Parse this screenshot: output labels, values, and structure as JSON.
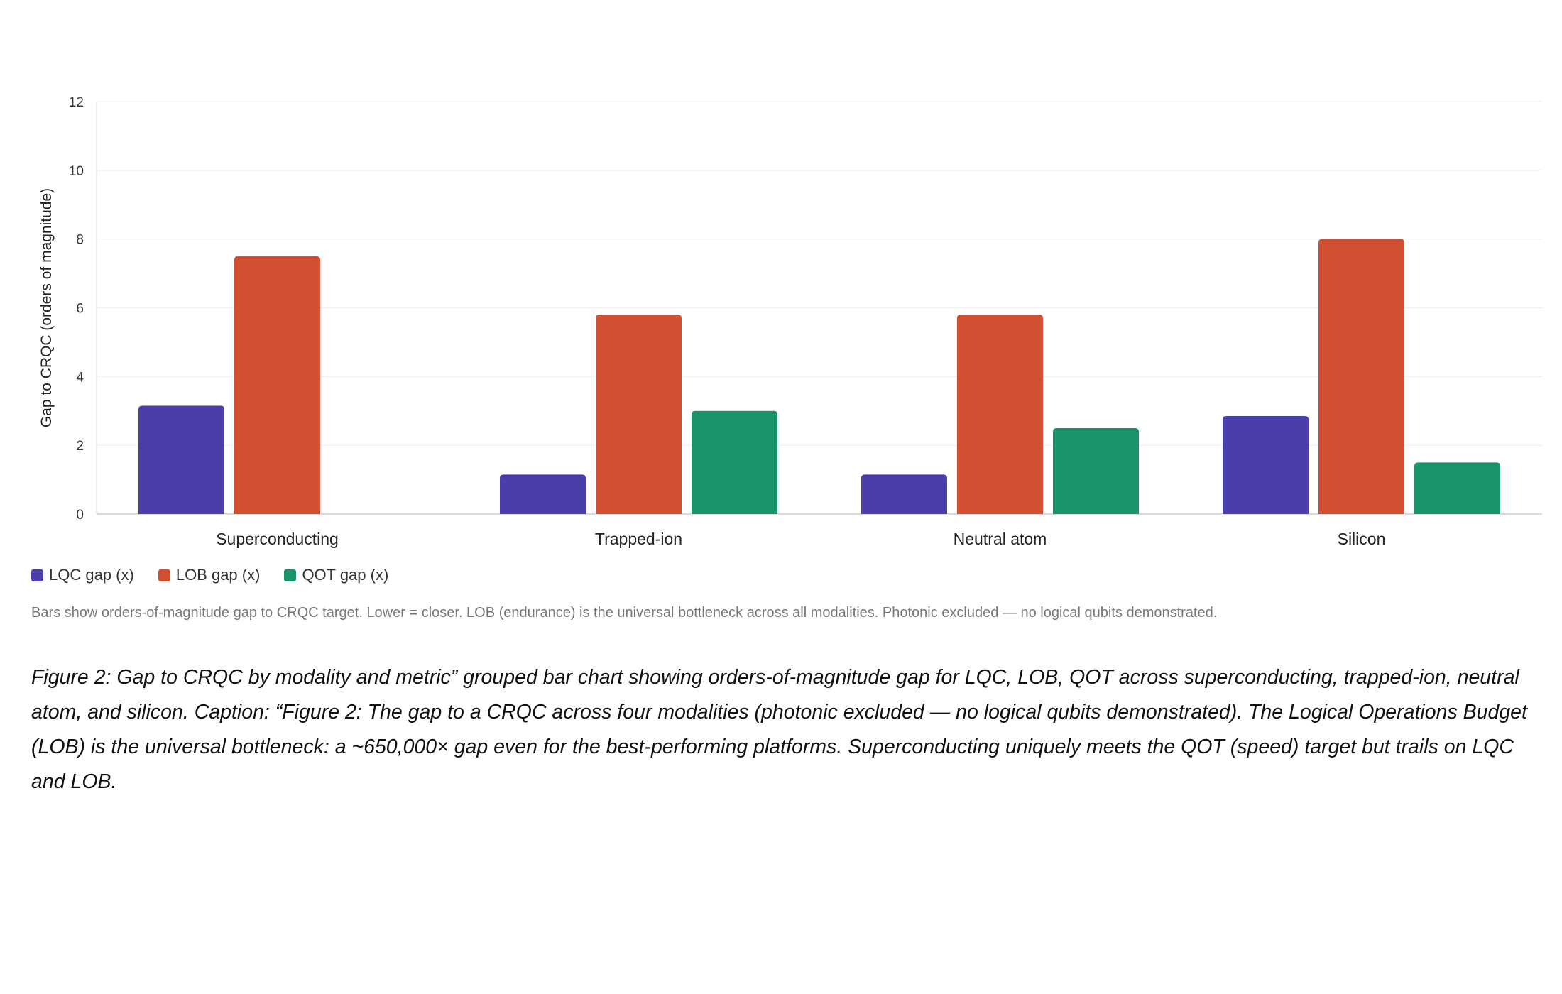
{
  "chart_data": {
    "type": "bar",
    "categories": [
      "Superconducting",
      "Trapped-ion",
      "Neutral atom",
      "Silicon"
    ],
    "series": [
      {
        "name": "LQC gap (x)",
        "color": "#4a3fa8",
        "values": [
          3.15,
          1.15,
          1.15,
          2.85
        ]
      },
      {
        "name": "LOB gap (x)",
        "color": "#d25031",
        "values": [
          7.5,
          5.8,
          5.8,
          8.0
        ]
      },
      {
        "name": "QOT gap (x)",
        "color": "#18936a",
        "values": [
          0,
          3.0,
          2.5,
          1.5
        ]
      }
    ],
    "title": "",
    "xlabel": "",
    "ylabel": "Gap to CRQC (orders of magnitude)",
    "ylim": [
      0,
      12
    ],
    "yticks": [
      "0",
      "2",
      "4",
      "6",
      "8",
      "10",
      "12"
    ],
    "grid": true,
    "legend_placement": "bottom-left"
  },
  "note": "Bars show orders-of-magnitude gap to CRQC target. Lower = closer. LOB (endurance) is the universal bottleneck across all modalities. Photonic excluded — no logical qubits demonstrated.",
  "caption": "Figure 2: Gap to CRQC by modality and metric” grouped bar chart showing orders-of-magnitude gap for LQC, LOB, QOT across superconducting, trapped-ion, neutral atom, and silicon. Caption: “Figure 2: The gap to a CRQC across four modalities (photonic excluded — no logical qubits demonstrated). The Logical Operations Budget (LOB) is the universal bottleneck: a ~650,000× gap even for the best-performing platforms. Superconducting uniquely meets the QOT (speed) target but trails on LQC and LOB."
}
